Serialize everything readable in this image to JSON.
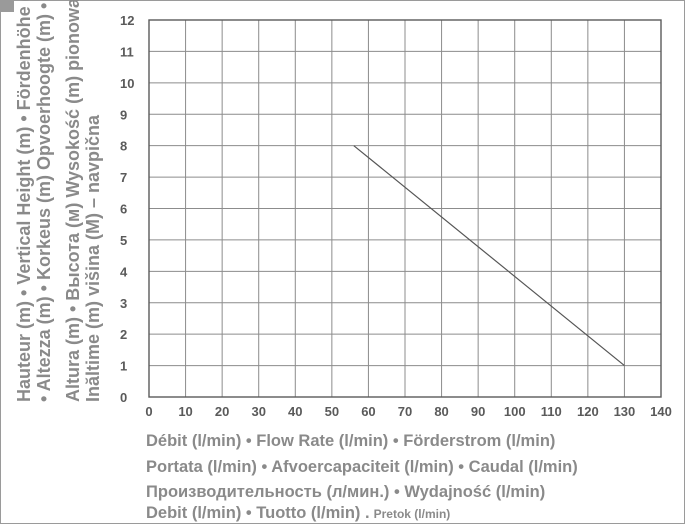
{
  "chart_data": {
    "type": "line",
    "title": "",
    "ylabel_lines": [
      "Hauteur (m) • Vertical Height (m) • Fördenhöhe (m)",
      "• Altezza (m) •  Korkeus (m) Opvoerhoogte (m) •",
      "Altura (m) • Высота (м) Wysokość (m) pionowa •",
      "Inăltime (m)  višina (M) – navpična"
    ],
    "xlabel_lines": [
      {
        "text": "Débit (l/min) • Flow Rate (l/min) • Förderstrom (l/min)"
      },
      {
        "text": "Portata (l/min) • Afvoercapaciteit (l/min) • Caudal (l/min)"
      },
      {
        "text": "Производительность (л/мин.) • Wydajność (l/min)"
      },
      {
        "text": "Debit (l/min)  • Tuotto (l/min) .",
        "small": "Pretok (l/min)"
      }
    ],
    "xlim": [
      0,
      140
    ],
    "ylim": [
      0,
      12
    ],
    "x_ticks": [
      0,
      10,
      20,
      30,
      40,
      50,
      60,
      70,
      80,
      90,
      100,
      110,
      120,
      130,
      140
    ],
    "y_ticks": [
      0,
      1,
      2,
      3,
      4,
      5,
      6,
      7,
      8,
      9,
      10,
      11,
      12
    ],
    "grid": true,
    "series": [
      {
        "x": [
          56,
          130
        ],
        "y": [
          8,
          1
        ],
        "color": "#555555"
      }
    ]
  }
}
